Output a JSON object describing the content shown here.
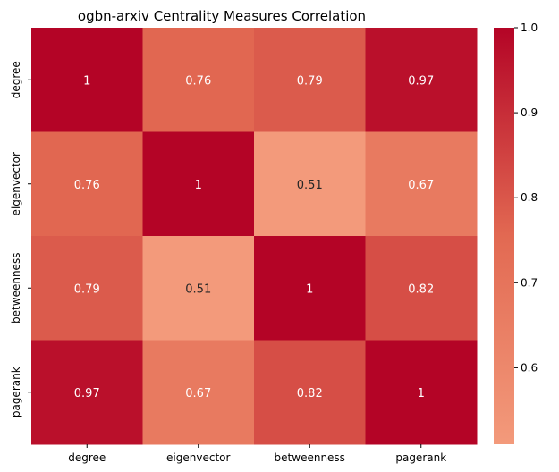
{
  "chart_data": {
    "type": "heatmap",
    "title": "ogbn-arxiv Centrality Measures Correlation",
    "xlabel": "",
    "ylabel": "",
    "x_categories": [
      "degree",
      "eigenvector",
      "betweenness",
      "pagerank"
    ],
    "y_categories": [
      "degree",
      "eigenvector",
      "betweenness",
      "pagerank"
    ],
    "values": [
      [
        1,
        0.76,
        0.79,
        0.97
      ],
      [
        0.76,
        1,
        0.51,
        0.67
      ],
      [
        0.79,
        0.51,
        1,
        0.82
      ],
      [
        0.97,
        0.67,
        0.82,
        1
      ]
    ],
    "annotations": [
      [
        "1",
        "0.76",
        "0.79",
        "0.97"
      ],
      [
        "0.76",
        "1",
        "0.51",
        "0.67"
      ],
      [
        "0.79",
        "0.51",
        "1",
        "0.82"
      ],
      [
        "0.97",
        "0.67",
        "0.82",
        "1"
      ]
    ],
    "colormap": "coolwarm (upper half)",
    "color_range": [
      0.51,
      1.0
    ],
    "colorbar_ticks": [
      "0.6",
      "0.7",
      "0.8",
      "0.9",
      "1.0"
    ],
    "colorbar_tick_values": [
      0.6,
      0.7,
      0.8,
      0.9,
      1.0
    ],
    "colors": {
      "low": "#f39a7b",
      "mid": "#e26952",
      "high": "#b40426",
      "annotation_light": "#ffffff",
      "annotation_dark": "#262626"
    },
    "legend": "colorbar-right"
  }
}
